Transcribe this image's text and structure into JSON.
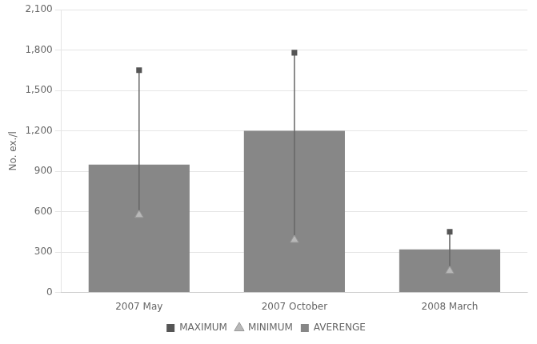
{
  "chart_data": {
    "type": "bar",
    "categories": [
      "2007 May",
      "2007 October",
      "2008 March"
    ],
    "series": [
      {
        "name": "AVERENGE",
        "type": "bar",
        "color": "#878787",
        "values": [
          950,
          1200,
          320
        ]
      },
      {
        "name": "MAXIMUM",
        "type": "scatter",
        "marker": "square",
        "color": "#555555",
        "values": [
          1650,
          1780,
          450
        ]
      },
      {
        "name": "MINIMUM",
        "type": "scatter",
        "marker": "triangle",
        "color": "#b8b8b8",
        "values": [
          575,
          390,
          160
        ]
      }
    ],
    "ylabel": "No. ex./l",
    "ylim": [
      0,
      2100
    ],
    "yticks": [
      0,
      300,
      600,
      900,
      1200,
      1500,
      1800,
      2100
    ],
    "grid": true,
    "legend": "bottom"
  }
}
